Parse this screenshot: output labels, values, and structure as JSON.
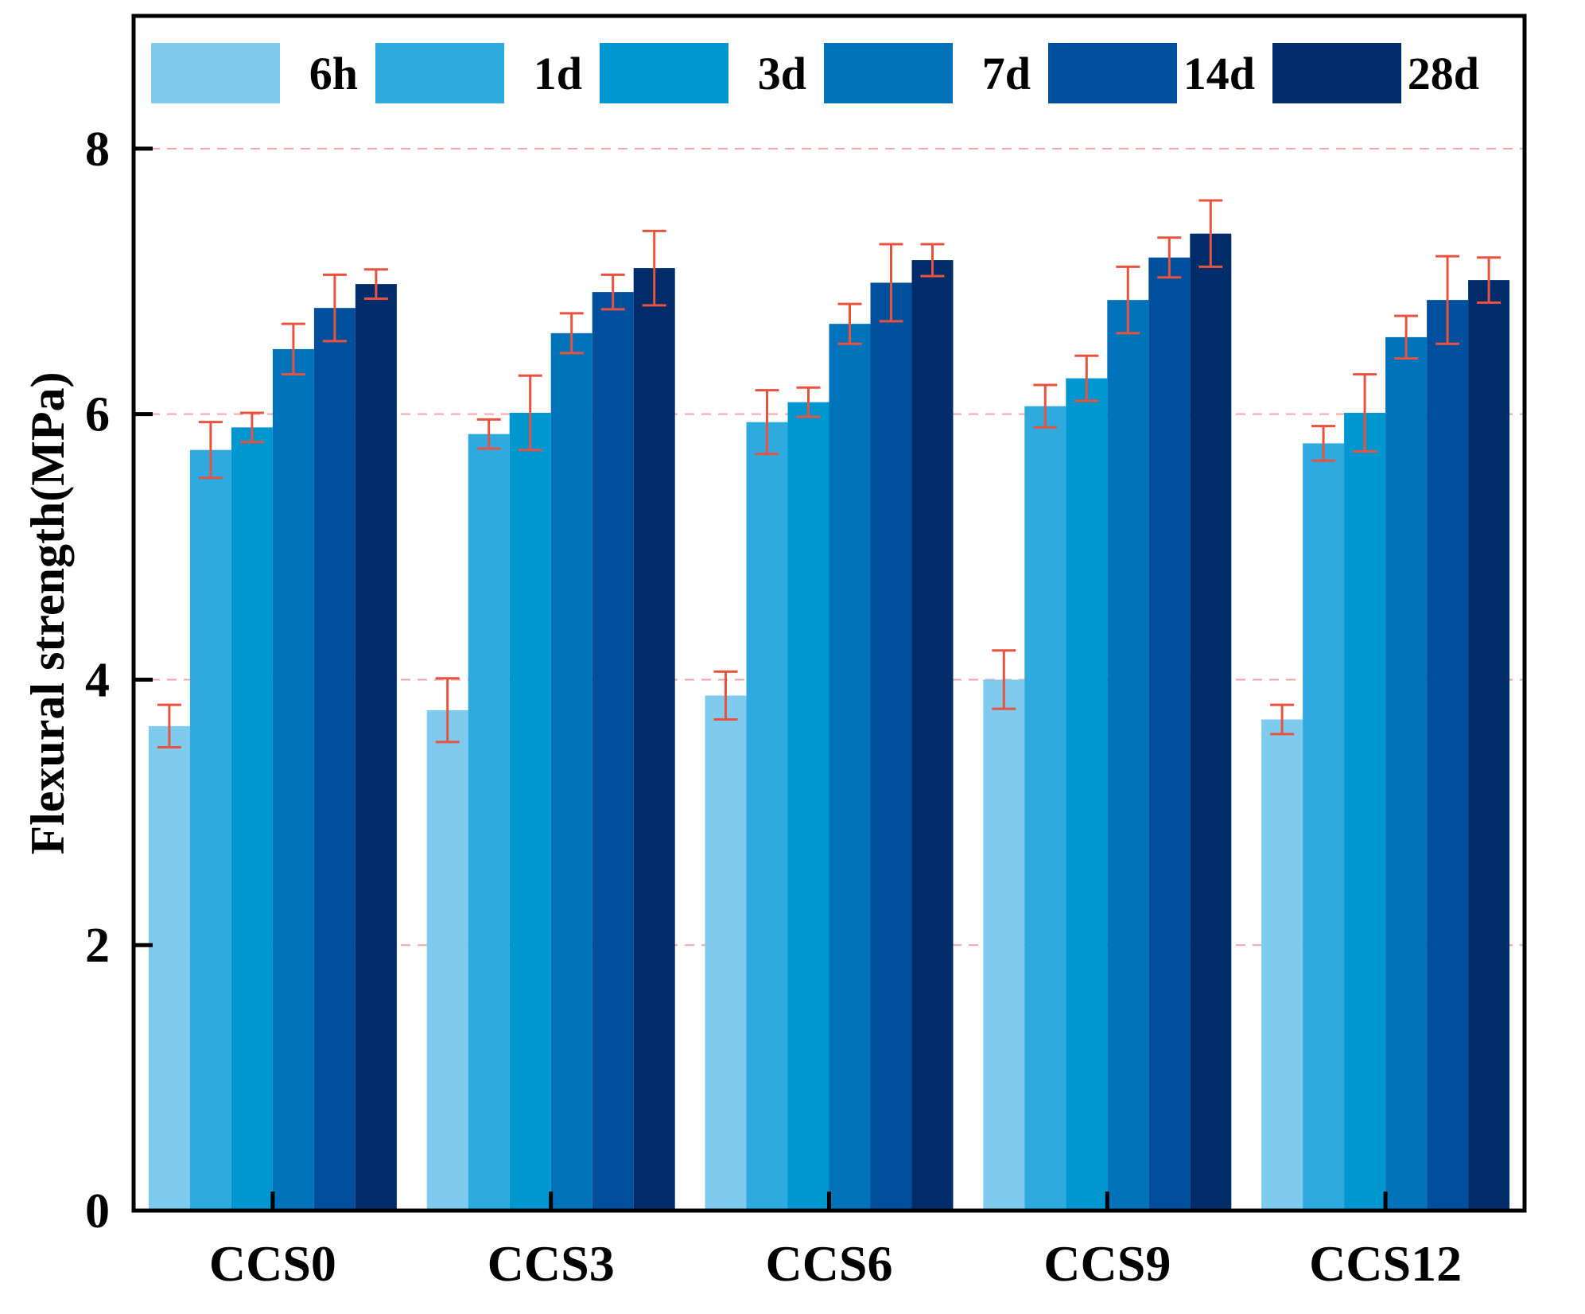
{
  "chart_data": {
    "type": "bar",
    "ylabel": "Flexural strength(MPa)",
    "xlabel": "",
    "ylim": [
      0,
      9
    ],
    "yticks": [
      0,
      2,
      4,
      6,
      8
    ],
    "y_tick_labels": [
      "0",
      "2",
      "4",
      "6",
      "8"
    ],
    "grid": "horizontal dashed",
    "legend_position": "top",
    "categories": [
      "CCS0",
      "CCS3",
      "CCS6",
      "CCS9",
      "CCS12"
    ],
    "series": [
      {
        "name": "6h",
        "color": "#7ecbee",
        "values": [
          3.65,
          3.77,
          3.88,
          4.0,
          3.7
        ],
        "errors": [
          0.16,
          0.24,
          0.18,
          0.22,
          0.11
        ]
      },
      {
        "name": "1d",
        "color": "#2eaadf",
        "values": [
          5.73,
          5.85,
          5.94,
          6.06,
          5.78
        ],
        "errors": [
          0.21,
          0.11,
          0.24,
          0.16,
          0.13
        ]
      },
      {
        "name": "3d",
        "color": "#0096cf",
        "values": [
          5.9,
          6.01,
          6.09,
          6.27,
          6.01
        ],
        "errors": [
          0.11,
          0.28,
          0.11,
          0.17,
          0.29
        ]
      },
      {
        "name": "7d",
        "color": "#0073bb",
        "values": [
          6.49,
          6.61,
          6.68,
          6.86,
          6.58
        ],
        "errors": [
          0.19,
          0.15,
          0.15,
          0.25,
          0.16
        ]
      },
      {
        "name": "14d",
        "color": "#004f9c",
        "values": [
          6.8,
          6.92,
          6.99,
          7.18,
          6.86
        ],
        "errors": [
          0.25,
          0.13,
          0.29,
          0.15,
          0.33
        ]
      },
      {
        "name": "28d",
        "color": "#002d6a",
        "values": [
          6.98,
          7.1,
          7.16,
          7.36,
          7.01
        ],
        "errors": [
          0.11,
          0.28,
          0.12,
          0.25,
          0.17
        ]
      }
    ],
    "error_bar_color": "#e8533f",
    "grid_color": "#f4a6a6"
  }
}
